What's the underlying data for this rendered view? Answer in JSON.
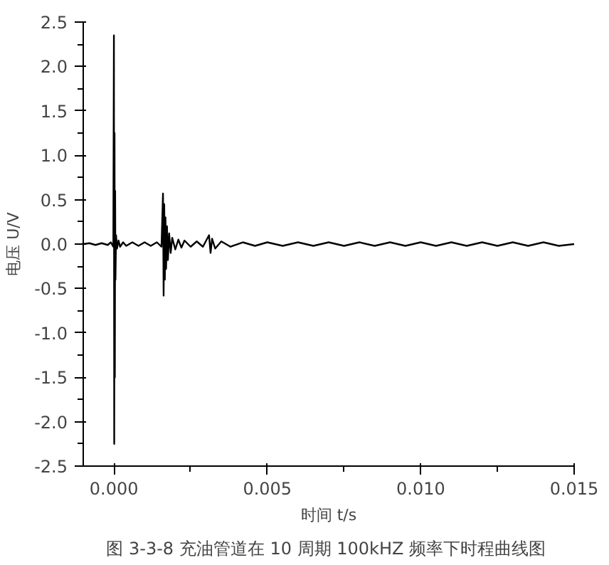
{
  "chart_data": {
    "type": "line",
    "xlabel": "时间 t/s",
    "ylabel": "电压 U/V",
    "annotations": [
      "图 3-3-8  充油管道在 10 周期 100kHZ 频率下时程曲线图"
    ],
    "xlim": [
      -0.001,
      0.015
    ],
    "xticks": [
      {
        "value": 0,
        "label": "0.000"
      },
      {
        "value": 0.0025,
        "label": null
      },
      {
        "value": 0.005,
        "label": "0.005"
      },
      {
        "value": 0.0075,
        "label": null
      },
      {
        "value": 0.01,
        "label": "0.010"
      },
      {
        "value": 0.0125,
        "label": null
      },
      {
        "value": 0.015,
        "label": "0.015"
      }
    ],
    "ylim": [
      -2.5,
      2.5
    ],
    "yticks": [
      {
        "value": -2.5,
        "label": "-2.5"
      },
      {
        "value": -2.25,
        "label": null
      },
      {
        "value": -2.0,
        "label": "-2.0"
      },
      {
        "value": -1.75,
        "label": null
      },
      {
        "value": -1.5,
        "label": "-1.5"
      },
      {
        "value": -1.25,
        "label": null
      },
      {
        "value": -1.0,
        "label": "-1.0"
      },
      {
        "value": -0.75,
        "label": null
      },
      {
        "value": -0.5,
        "label": "-0.5"
      },
      {
        "value": -0.25,
        "label": null
      },
      {
        "value": 0,
        "label": "0.0"
      },
      {
        "value": 0.25,
        "label": null
      },
      {
        "value": 0.5,
        "label": "0.5"
      },
      {
        "value": 0.75,
        "label": null
      },
      {
        "value": 1.0,
        "label": "1.0"
      },
      {
        "value": 1.25,
        "label": null
      },
      {
        "value": 1.5,
        "label": "1.5"
      },
      {
        "value": 1.75,
        "label": null
      },
      {
        "value": 2.0,
        "label": "2.0"
      },
      {
        "value": 2.25,
        "label": null
      },
      {
        "value": 2.5,
        "label": "2.5"
      }
    ],
    "grid": false,
    "marker": "none",
    "line_style": "solid",
    "series": [
      {
        "color": "#000000",
        "x": [
          -0.001,
          -0.0008,
          -0.0006,
          -0.0004,
          -0.0002,
          -0.0001,
          -2e-05,
          0,
          1e-05,
          2e-05,
          3e-05,
          4e-05,
          5e-05,
          7e-05,
          0.0001,
          0.00015,
          0.0002,
          0.0003,
          0.0004,
          0.0006,
          0.0008,
          0.001,
          0.0012,
          0.0014,
          0.00155,
          0.0016,
          0.00162,
          0.00164,
          0.00166,
          0.00168,
          0.0017,
          0.00173,
          0.00176,
          0.0018,
          0.00185,
          0.0019,
          0.002,
          0.0021,
          0.0022,
          0.0023,
          0.0025,
          0.0027,
          0.0029,
          0.0031,
          0.00315,
          0.0032,
          0.0033,
          0.0035,
          0.0038,
          0.0042,
          0.0046,
          0.005,
          0.0055,
          0.006,
          0.0065,
          0.007,
          0.0075,
          0.008,
          0.0085,
          0.009,
          0.0095,
          0.01,
          0.0105,
          0.011,
          0.0115,
          0.012,
          0.0125,
          0.013,
          0.0135,
          0.014,
          0.0145,
          0.015
        ],
        "values": [
          0,
          0.01,
          -0.01,
          0.01,
          -0.01,
          0.02,
          -0.03,
          2.35,
          -2.25,
          1.25,
          -1.5,
          0.6,
          -0.4,
          0.1,
          -0.05,
          0.04,
          -0.03,
          0.02,
          -0.02,
          0.02,
          -0.02,
          0.02,
          -0.02,
          0.02,
          -0.03,
          0.57,
          -0.58,
          0.45,
          -0.4,
          0.3,
          -0.28,
          0.2,
          -0.18,
          0.12,
          -0.1,
          0.07,
          -0.06,
          0.05,
          -0.04,
          0.04,
          -0.03,
          0.03,
          -0.03,
          0.1,
          -0.1,
          0.06,
          -0.05,
          0.03,
          -0.03,
          0.02,
          -0.02,
          0.02,
          -0.02,
          0.02,
          -0.02,
          0.02,
          -0.02,
          0.02,
          -0.02,
          0.02,
          -0.02,
          0.02,
          -0.02,
          0.02,
          -0.02,
          0.02,
          -0.02,
          0.02,
          -0.02,
          0.02,
          -0.02,
          0
        ]
      }
    ]
  }
}
